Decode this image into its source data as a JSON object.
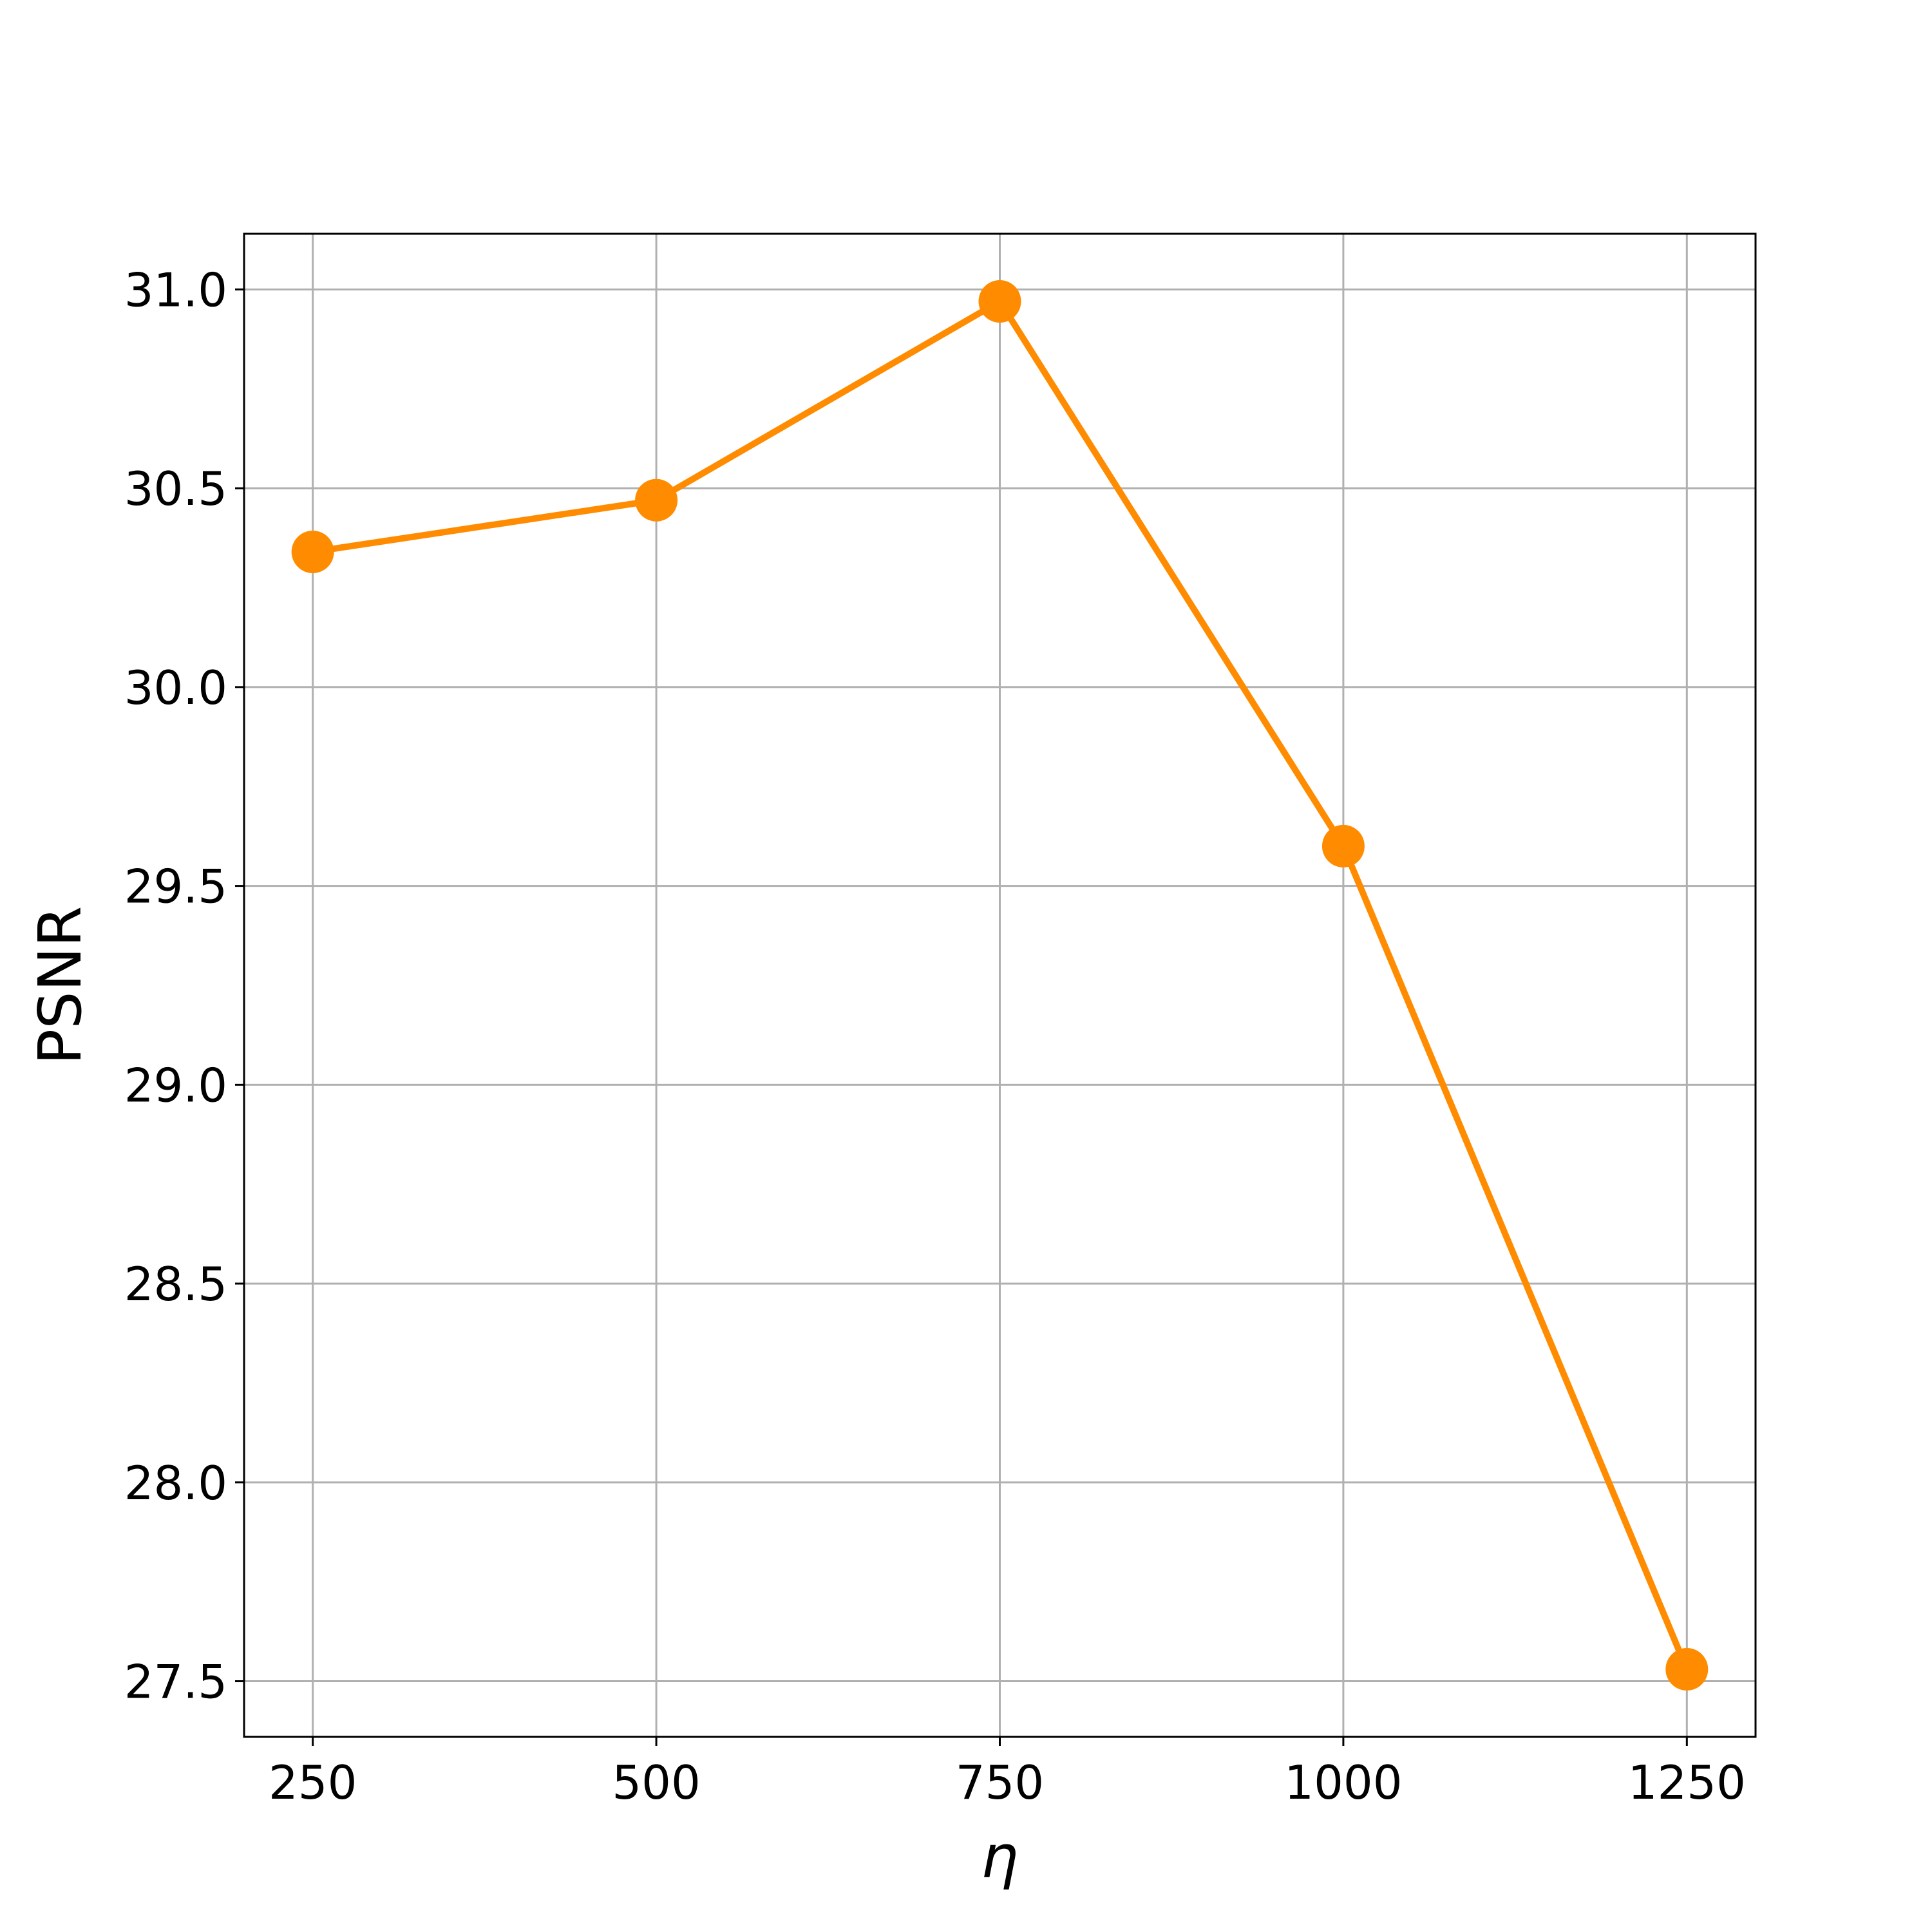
{
  "chart_data": {
    "type": "line",
    "x_label": "η",
    "y_label": "PSNR",
    "x": [
      250,
      500,
      750,
      1000,
      1250
    ],
    "series": [
      {
        "color": "#ff8c00",
        "values": [
          30.34,
          30.47,
          30.97,
          29.6,
          27.53
        ]
      }
    ],
    "xlim": [
      200,
      1300
    ],
    "xticks": [
      250,
      500,
      750,
      1000,
      1250
    ],
    "ylim": [
      27.36,
      31.14
    ],
    "yticks": [
      {
        "value": 27.5,
        "label": "27.5"
      },
      {
        "value": 28,
        "label": "28.0"
      },
      {
        "value": 28.5,
        "label": "28.5"
      },
      {
        "value": 29,
        "label": "29.0"
      },
      {
        "value": 29.5,
        "label": "29.5"
      },
      {
        "value": 30,
        "label": "30.0"
      },
      30.5,
      {
        "value": 31,
        "label": "31.0"
      }
    ],
    "grid": true
  }
}
